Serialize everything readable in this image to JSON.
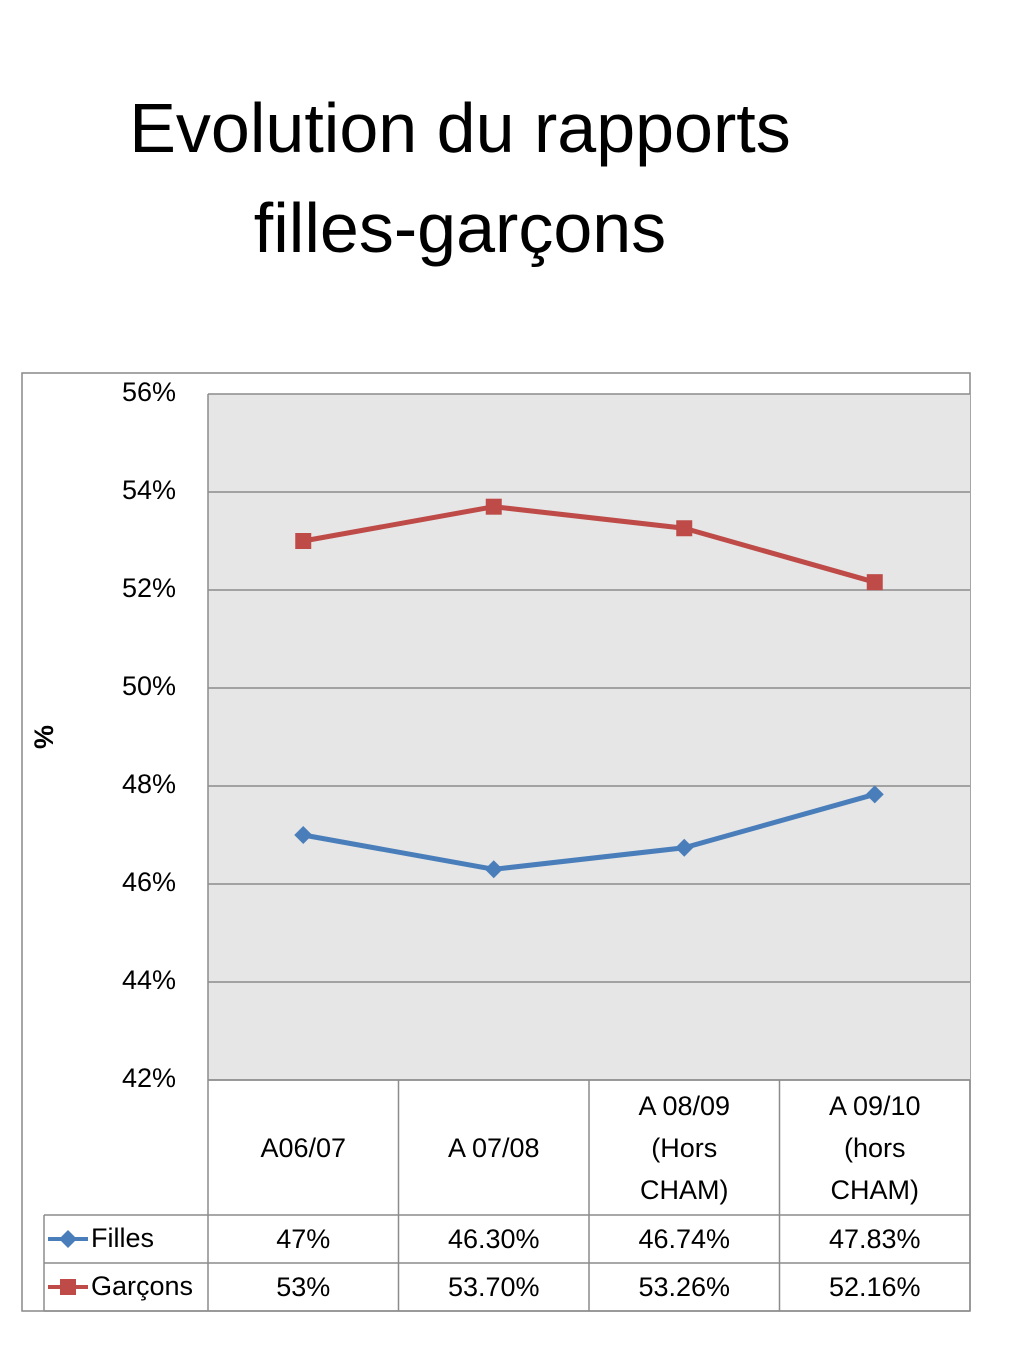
{
  "chart_data": {
    "type": "line",
    "title": "Evolution du rapports filles-garçons",
    "ylabel": "%",
    "categories": [
      "A06/07",
      "A 07/08",
      "A 08/09 (Hors CHAM)",
      "A 09/10 (hors CHAM)"
    ],
    "series": [
      {
        "name": "Filles",
        "color": "#4a7ebb",
        "marker": "diamond",
        "values": [
          47,
          46.3,
          46.74,
          47.83
        ],
        "value_labels": [
          "47%",
          "46.30%",
          "46.74%",
          "47.83%"
        ]
      },
      {
        "name": "Garçons",
        "color": "#be4b48",
        "marker": "square",
        "values": [
          53,
          53.7,
          53.26,
          52.16
        ],
        "value_labels": [
          "53%",
          "53.70%",
          "53.26%",
          "52.16%"
        ]
      }
    ],
    "ylim": [
      42,
      56
    ],
    "yticks": [
      {
        "value": 42,
        "label": "42%"
      },
      {
        "value": 44,
        "label": "44%"
      },
      {
        "value": 46,
        "label": "46%"
      },
      {
        "value": 48,
        "label": "48%"
      },
      {
        "value": 50,
        "label": "50%"
      },
      {
        "value": 52,
        "label": "52%"
      },
      {
        "value": 54,
        "label": "54%"
      },
      {
        "value": 56,
        "label": "56%"
      }
    ],
    "grid": true,
    "data_table": true
  }
}
